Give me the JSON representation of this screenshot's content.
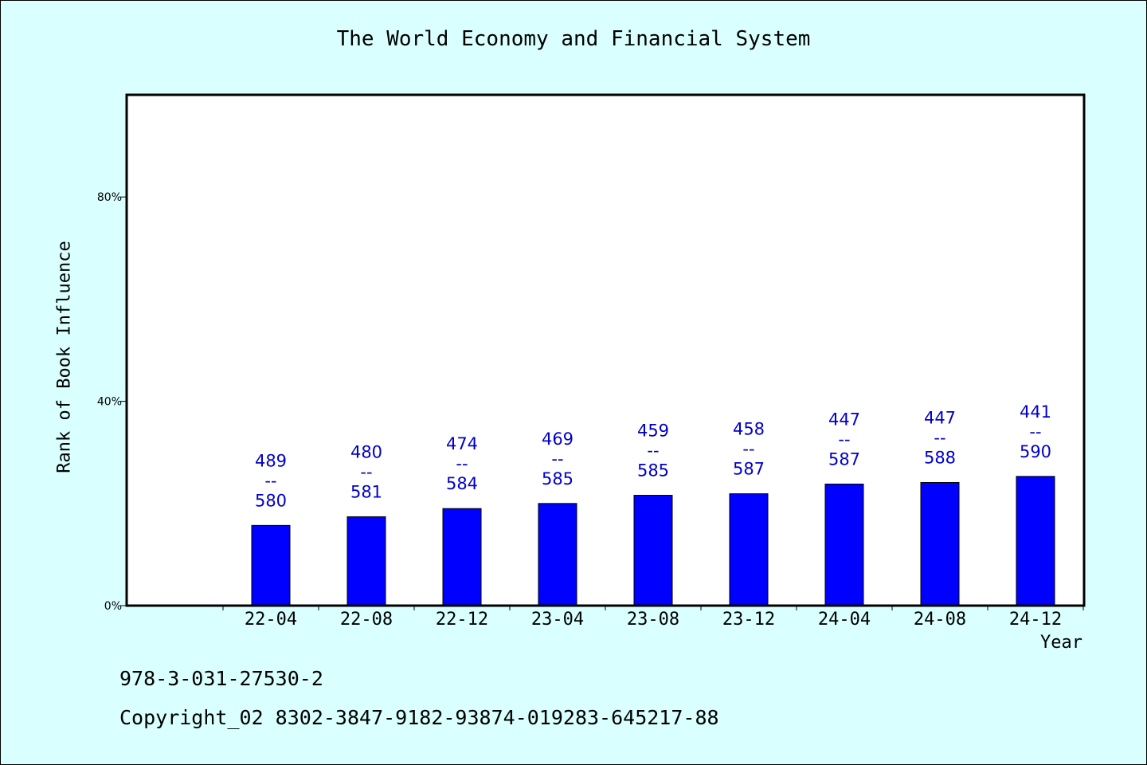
{
  "chart_data": {
    "type": "bar",
    "title": "The World Economy and Financial System",
    "xlabel": "Year",
    "ylabel": "Rank of Book Influence",
    "ylim": [
      0,
      100
    ],
    "yticks": [
      {
        "value": 0,
        "label": "0%"
      },
      {
        "value": 40,
        "label": "40%"
      },
      {
        "value": 80,
        "label": "80%"
      }
    ],
    "categories": [
      "22-04",
      "22-08",
      "22-12",
      "23-04",
      "23-08",
      "23-12",
      "24-04",
      "24-08",
      "24-12"
    ],
    "values": [
      15.7,
      17.4,
      19.0,
      20.0,
      21.6,
      21.9,
      23.8,
      24.1,
      25.3
    ],
    "labels": [
      [
        "489",
        "--",
        "580"
      ],
      [
        "480",
        "--",
        "581"
      ],
      [
        "474",
        "--",
        "584"
      ],
      [
        "469",
        "--",
        "585"
      ],
      [
        "459",
        "--",
        "585"
      ],
      [
        "458",
        "--",
        "587"
      ],
      [
        "447",
        "--",
        "587"
      ],
      [
        "447",
        "--",
        "588"
      ],
      [
        "441",
        "--",
        "590"
      ]
    ],
    "grid": false,
    "legend": "none"
  },
  "footer": {
    "isbn": "978-3-031-27530-2",
    "copyright": "Copyright_02 8302-3847-9182-93874-019283-645217-88"
  },
  "colors": {
    "background": "#d9ffff",
    "plot_background": "#ffffff",
    "bar": "#0000ff",
    "label": "#0000cc",
    "axis": "#000000"
  }
}
